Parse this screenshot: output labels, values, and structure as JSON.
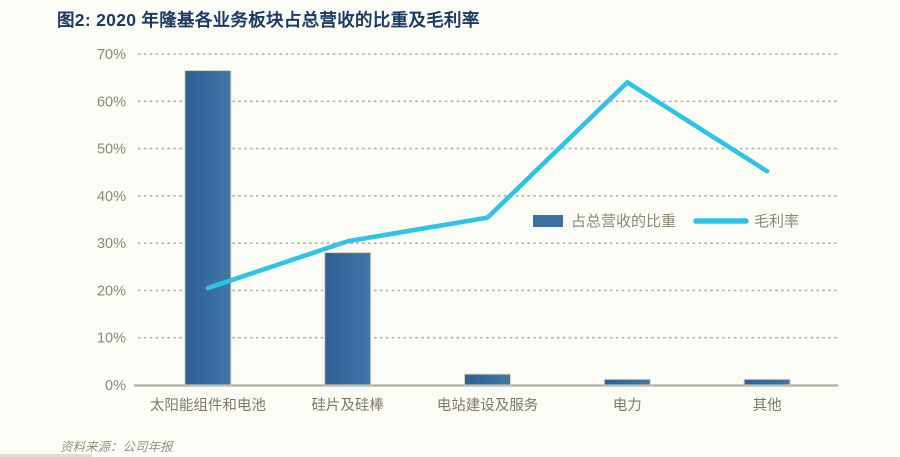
{
  "footer": {
    "source": "资料来源：公司年报"
  },
  "colors": {
    "background": "#fcfcf6",
    "title": "#1d3b63",
    "axis_text": "#8c8776",
    "xaxis_text": "#7e7969",
    "grid": "#b4b09f",
    "baseline": "#b2ae9e",
    "bar_fill_dark": "#2e5f95",
    "bar_fill_light": "#4078a8",
    "bar_stroke": "#d6d3c2",
    "line": "#2fc3e4",
    "legend_text": "#8c8776"
  },
  "chart_data": {
    "type": "bar",
    "subtype": "bar+line combo",
    "title": "图2: 2020 年隆基各业务板块占总营收的比重及毛利率",
    "categories": [
      "太阳能组件和电池",
      "硅片及硅棒",
      "电站建设及服务",
      "电力",
      "其他"
    ],
    "series": [
      {
        "name": "占总营收的比重",
        "type": "bar",
        "color": "#3d6fa2",
        "values": [
          66.5,
          28.0,
          2.3,
          1.2,
          1.2
        ]
      },
      {
        "name": "毛利率",
        "type": "line",
        "color": "#2fc3e4",
        "values": [
          20.5,
          30.4,
          35.4,
          64.0,
          45.2
        ]
      }
    ],
    "xlabel": "",
    "ylabel": "",
    "ylim": [
      0,
      70
    ],
    "yticks": [
      0,
      10,
      20,
      30,
      40,
      50,
      60,
      70
    ],
    "ytick_format": "{v}%",
    "grid": "horizontal-dashed",
    "legend_position": "inside-center-right"
  }
}
